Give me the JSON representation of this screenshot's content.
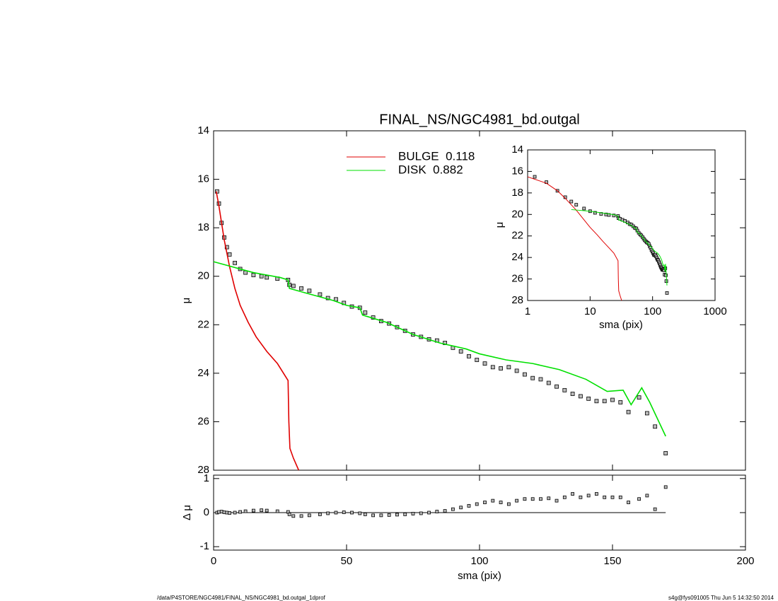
{
  "chart_data": [
    {
      "type": "line",
      "title": "FINAL_NS/NGC4981_bd.outgal",
      "ylabel": "μ",
      "xlim": [
        0,
        200
      ],
      "xticks": [
        0,
        50,
        100,
        150,
        200
      ],
      "ylim": [
        28,
        14
      ],
      "yticks": [
        14,
        16,
        18,
        20,
        22,
        24,
        26,
        28
      ],
      "series": [
        {
          "color": "#000000",
          "marker": "square",
          "x": [
            1.3,
            2,
            3,
            4,
            5,
            6,
            8,
            10,
            12,
            15,
            18,
            20,
            24,
            28,
            28.5,
            30,
            33,
            36,
            40,
            43,
            46,
            49,
            52,
            55,
            57,
            60,
            63,
            66,
            69,
            72,
            75,
            78,
            81,
            84,
            87,
            90,
            93,
            96,
            99,
            102,
            105,
            108,
            111,
            114,
            117,
            120,
            123,
            126,
            129,
            132,
            135,
            138,
            141,
            144,
            147,
            150,
            153,
            156,
            160,
            163,
            166,
            170
          ],
          "values": [
            16.5,
            17.0,
            17.8,
            18.4,
            18.8,
            19.1,
            19.45,
            19.7,
            19.85,
            19.95,
            20.0,
            20.05,
            20.1,
            20.15,
            20.35,
            20.4,
            20.5,
            20.6,
            20.75,
            20.9,
            20.95,
            21.1,
            21.25,
            21.3,
            21.5,
            21.7,
            21.85,
            21.95,
            22.1,
            22.25,
            22.4,
            22.5,
            22.6,
            22.65,
            22.75,
            22.95,
            23.1,
            23.3,
            23.45,
            23.6,
            23.75,
            23.8,
            23.75,
            23.9,
            24.05,
            24.2,
            24.25,
            24.4,
            24.55,
            24.7,
            24.85,
            24.95,
            25.05,
            25.15,
            25.15,
            25.1,
            25.2,
            25.6,
            25.0,
            25.65,
            26.2,
            27.3
          ]
        },
        {
          "name": "BULGE  0.118",
          "color": "#e00000",
          "x": [
            1,
            2,
            3,
            4,
            6,
            8,
            10,
            13,
            16,
            20,
            24,
            28,
            28.3,
            28.7,
            30,
            32
          ],
          "values": [
            16.5,
            17.1,
            17.8,
            18.5,
            19.6,
            20.5,
            21.2,
            21.9,
            22.5,
            23.1,
            23.6,
            24.3,
            26.0,
            27.1,
            27.5,
            28.0
          ]
        },
        {
          "name": "DISK  0.882",
          "color": "#00e000",
          "x": [
            0,
            5,
            10,
            15,
            20,
            25,
            28,
            28.5,
            35,
            45,
            50,
            55,
            56,
            65,
            75,
            85,
            95,
            100,
            110,
            120,
            130,
            140,
            148,
            154,
            157,
            161,
            164,
            170
          ],
          "values": [
            19.4,
            19.55,
            19.7,
            19.85,
            19.95,
            20.05,
            20.15,
            20.5,
            20.7,
            21.0,
            21.2,
            21.3,
            21.6,
            21.9,
            22.4,
            22.75,
            23.0,
            23.2,
            23.45,
            23.6,
            23.85,
            24.25,
            24.75,
            24.7,
            25.3,
            24.6,
            25.2,
            26.6
          ]
        }
      ]
    },
    {
      "type": "line",
      "log_x": true,
      "xlabel": "sma (pix)",
      "ylabel": "μ",
      "xlim": [
        1,
        1000
      ],
      "xticks": [
        1,
        10,
        100,
        1000
      ],
      "ylim": [
        28,
        14
      ],
      "yticks": [
        14,
        16,
        18,
        20,
        22,
        24,
        26,
        28
      ]
    },
    {
      "type": "scatter",
      "xlabel": "sma (pix)",
      "ylabel": "Δ μ",
      "xlim": [
        0,
        200
      ],
      "xticks": [
        0,
        50,
        100,
        150,
        200
      ],
      "ylim": [
        -1.1,
        1.1
      ],
      "yticks": [
        -1,
        0,
        1
      ],
      "color": "#000000",
      "values": [
        0,
        0.02,
        0.03,
        0.01,
        0,
        -0.01,
        0,
        0.02,
        0.04,
        0.06,
        0.07,
        0.06,
        0.04,
        0.02,
        -0.05,
        -0.1,
        -0.1,
        -0.08,
        -0.05,
        -0.02,
        0,
        0.01,
        0,
        -0.02,
        -0.05,
        -0.08,
        -0.08,
        -0.07,
        -0.06,
        -0.05,
        -0.03,
        -0.02,
        0,
        0.03,
        0.05,
        0.1,
        0.15,
        0.2,
        0.25,
        0.3,
        0.35,
        0.3,
        0.25,
        0.35,
        0.4,
        0.4,
        0.4,
        0.42,
        0.35,
        0.45,
        0.55,
        0.45,
        0.5,
        0.55,
        0.45,
        0.45,
        0.45,
        0.3,
        0.4,
        0.5,
        0.1,
        0.75
      ]
    }
  ],
  "footer": {
    "left": "/data/P4STORE/NGC4981/FINAL_NS/NGC4981_bd.outgal_1dprof",
    "right": "s4g@fys091005  Thu Jun  5 14:32:50 2014"
  }
}
